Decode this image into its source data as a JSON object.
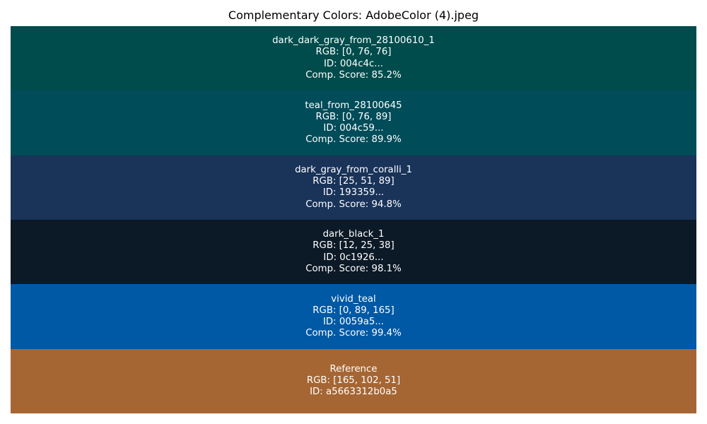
{
  "chart_data": {
    "type": "table",
    "title": "Complementary Colors: AdobeColor (4).jpeg",
    "swatches": [
      {
        "name": "dark_dark_gray_from_28100610_1",
        "color": "#004c4c",
        "rgb_text": "RGB: [0, 76, 76]",
        "id_text": "ID: 004c4c...",
        "score_text": "Comp. Score: 85.2%",
        "score": 85.2
      },
      {
        "name": "teal_from_28100645",
        "color": "#004c59",
        "rgb_text": "RGB: [0, 76, 89]",
        "id_text": "ID: 004c59...",
        "score_text": "Comp. Score: 89.9%",
        "score": 89.9
      },
      {
        "name": "dark_gray_from_coralli_1",
        "color": "#193359",
        "rgb_text": "RGB: [25, 51, 89]",
        "id_text": "ID: 193359...",
        "score_text": "Comp. Score: 94.8%",
        "score": 94.8
      },
      {
        "name": "dark_black_1",
        "color": "#0c1926",
        "rgb_text": "RGB: [12, 25, 38]",
        "id_text": "ID: 0c1926...",
        "score_text": "Comp. Score: 98.1%",
        "score": 98.1
      },
      {
        "name": "vivid_teal",
        "color": "#0059a5",
        "rgb_text": "RGB: [0, 89, 165]",
        "id_text": "ID: 0059a5...",
        "score_text": "Comp. Score: 99.4%",
        "score": 99.4
      },
      {
        "name": "Reference",
        "color": "#a56633",
        "rgb_text": "RGB: [165, 102, 51]",
        "id_text": "ID: a5663312b0a5",
        "score_text": "",
        "score": null
      }
    ]
  }
}
